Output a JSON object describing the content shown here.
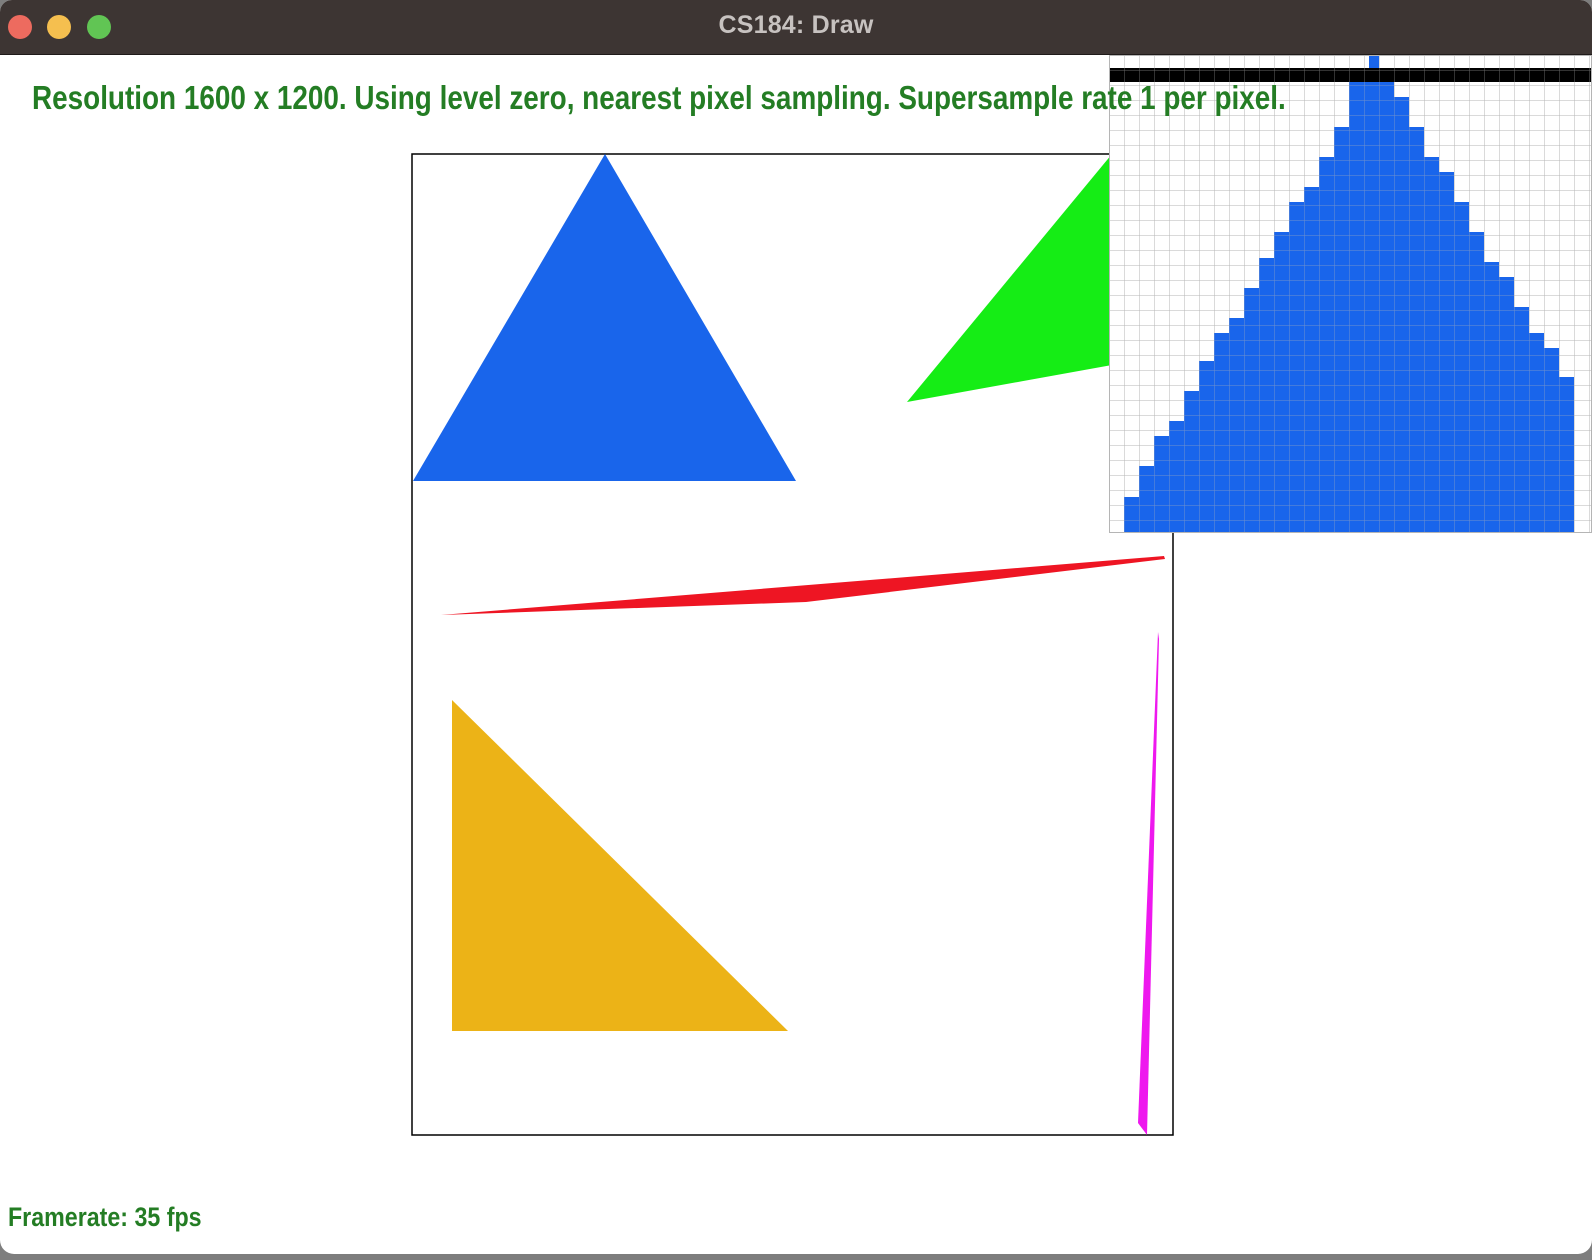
{
  "window": {
    "title": "CS184: Draw"
  },
  "status": {
    "info_text": "Resolution 1600 x 1200. Using level zero, nearest pixel sampling. Supersample rate 1 per pixel.",
    "framerate_text": "Framerate: 35 fps"
  },
  "colors": {
    "text_green": "#247d24",
    "blue_triangle": "#1965eb",
    "green_triangle": "#15ed15",
    "red_triangle": "#ee1523",
    "yellow_triangle": "#ecb317",
    "magenta_triangle": "#ee18ee",
    "titlebar": "#3d3533"
  },
  "icons": {
    "close": "traffic-light-close",
    "minimize": "traffic-light-minimize",
    "maximize": "traffic-light-maximize"
  }
}
